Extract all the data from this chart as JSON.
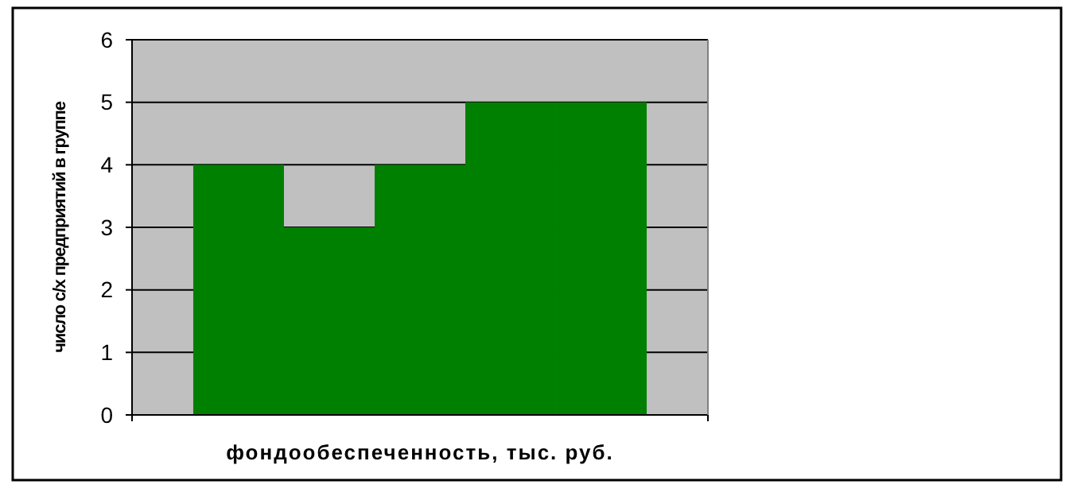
{
  "chart_data": {
    "type": "bar",
    "xlabel": "фондообеспеченность, тыс. руб.",
    "ylabel": "число с/х предприятий в группе",
    "categories": [
      null,
      null,
      null,
      null,
      null
    ],
    "values": [
      4,
      3,
      4,
      5,
      5
    ],
    "color": "#008000",
    "ylim": [
      0,
      6
    ],
    "yticks": [
      0,
      1,
      2,
      3,
      4,
      5,
      6
    ],
    "grid": "y"
  }
}
